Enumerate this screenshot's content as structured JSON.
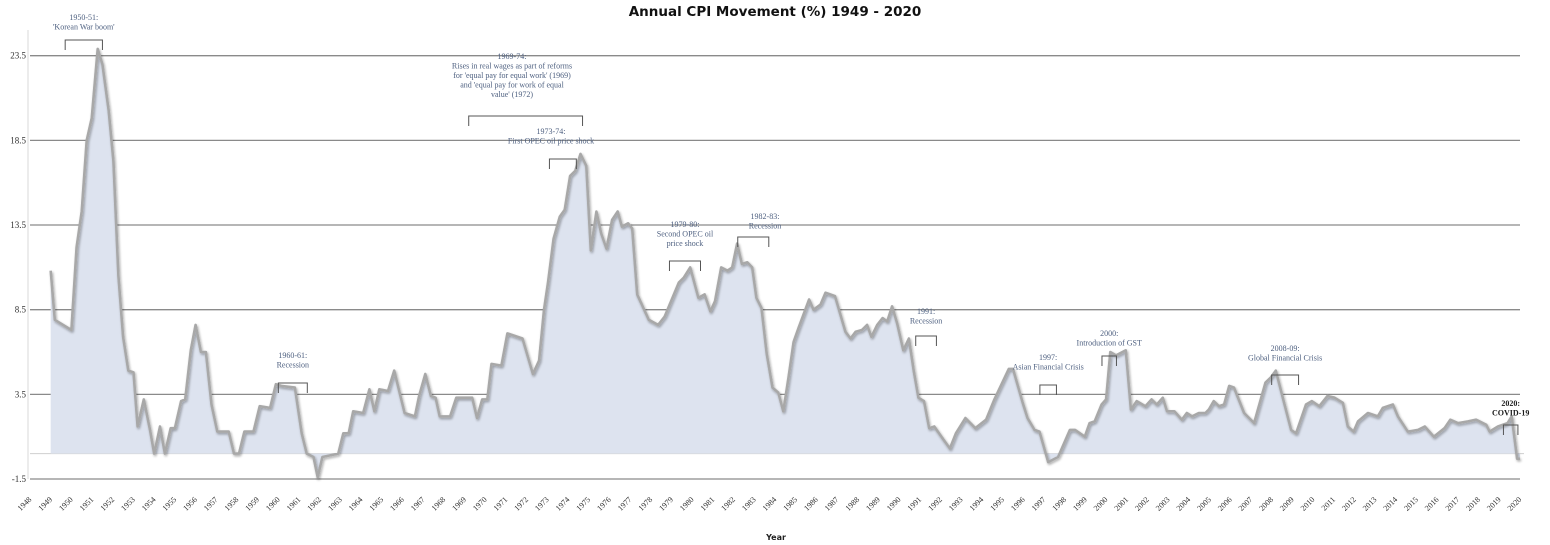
{
  "chart_data": {
    "type": "area",
    "title": "Annual CPI Movement (%) 1949 - 2020",
    "xlabel": "Year",
    "ylabel": "",
    "ylim": [
      -1.5,
      25
    ],
    "yticks": [
      "-1.5",
      "3.5",
      "8.5",
      "13.5",
      "18.5",
      "23.5"
    ],
    "xlim": [
      1948,
      2020
    ],
    "xticks": [
      "1948",
      "1949",
      "1950",
      "1951",
      "1952",
      "1953",
      "1954",
      "1955",
      "1956",
      "1957",
      "1958",
      "1959",
      "1960",
      "1961",
      "1962",
      "1963",
      "1964",
      "1965",
      "1966",
      "1967",
      "1968",
      "1969",
      "1970",
      "1971",
      "1972",
      "1973",
      "1974",
      "1975",
      "1976",
      "1977",
      "1978",
      "1979",
      "1980",
      "1981",
      "1982",
      "1983",
      "1984",
      "1985",
      "1986",
      "1987",
      "1988",
      "1989",
      "1990",
      "1991",
      "1992",
      "1993",
      "1994",
      "1995",
      "1996",
      "1997",
      "1998",
      "1999",
      "2000",
      "2001",
      "2002",
      "2003",
      "2004",
      "2005",
      "2006",
      "2007",
      "2008",
      "2009",
      "2010",
      "2011",
      "2012",
      "2013",
      "2014",
      "2015",
      "2016",
      "2017",
      "2018",
      "2019",
      "2020"
    ],
    "grid": true,
    "legend": "none",
    "colors": {
      "fill": "#dde3ef",
      "line": "#a8a8a8",
      "grid": "#8a8a8a",
      "annotation": "#4f6181"
    },
    "series": [
      {
        "points": [
          [
            1949.0,
            10.8
          ],
          [
            1949.2,
            7.9
          ],
          [
            1950.0,
            7.3
          ],
          [
            1950.25,
            12.2
          ],
          [
            1950.5,
            14.3
          ],
          [
            1950.74,
            18.5
          ],
          [
            1950.98,
            19.8
          ],
          [
            1951.27,
            23.9
          ],
          [
            1951.5,
            23.0
          ],
          [
            1951.8,
            20.3
          ],
          [
            1952.03,
            17.3
          ],
          [
            1952.27,
            10.5
          ],
          [
            1952.5,
            6.9
          ],
          [
            1952.75,
            4.9
          ],
          [
            1953.0,
            4.8
          ],
          [
            1953.2,
            1.6
          ],
          [
            1953.5,
            3.2
          ],
          [
            1953.8,
            1.4
          ],
          [
            1954.0,
            0.0
          ],
          [
            1954.28,
            1.6
          ],
          [
            1954.52,
            0.0
          ],
          [
            1954.8,
            1.5
          ],
          [
            1955.0,
            1.5
          ],
          [
            1955.3,
            3.1
          ],
          [
            1955.5,
            3.2
          ],
          [
            1955.77,
            6.1
          ],
          [
            1956.0,
            7.6
          ],
          [
            1956.26,
            6.0
          ],
          [
            1956.5,
            6.0
          ],
          [
            1956.77,
            2.9
          ],
          [
            1957.05,
            1.3
          ],
          [
            1957.6,
            1.3
          ],
          [
            1957.86,
            0.0
          ],
          [
            1958.1,
            0.0
          ],
          [
            1958.36,
            1.3
          ],
          [
            1958.8,
            1.3
          ],
          [
            1959.1,
            2.8
          ],
          [
            1959.6,
            2.7
          ],
          [
            1959.88,
            4.1
          ],
          [
            1960.15,
            4.0
          ],
          [
            1960.8,
            3.9
          ],
          [
            1961.13,
            1.2
          ],
          [
            1961.37,
            0.0
          ],
          [
            1961.7,
            -0.2
          ],
          [
            1961.9,
            -1.4
          ],
          [
            1962.13,
            -0.2
          ],
          [
            1962.9,
            0.0
          ],
          [
            1963.14,
            1.2
          ],
          [
            1963.4,
            1.2
          ],
          [
            1963.62,
            2.5
          ],
          [
            1964.1,
            2.4
          ],
          [
            1964.4,
            3.8
          ],
          [
            1964.64,
            2.5
          ],
          [
            1964.88,
            3.8
          ],
          [
            1965.3,
            3.7
          ],
          [
            1965.6,
            4.9
          ],
          [
            1966.1,
            2.4
          ],
          [
            1966.6,
            2.2
          ],
          [
            1966.8,
            3.4
          ],
          [
            1967.1,
            4.7
          ],
          [
            1967.37,
            3.4
          ],
          [
            1967.6,
            3.3
          ],
          [
            1967.8,
            2.2
          ],
          [
            1968.3,
            2.2
          ],
          [
            1968.6,
            3.3
          ],
          [
            1969.37,
            3.3
          ],
          [
            1969.6,
            2.1
          ],
          [
            1969.85,
            3.2
          ],
          [
            1970.1,
            3.2
          ],
          [
            1970.3,
            5.3
          ],
          [
            1970.78,
            5.2
          ],
          [
            1971.07,
            7.1
          ],
          [
            1971.8,
            6.8
          ],
          [
            1972.3,
            4.7
          ],
          [
            1972.6,
            5.5
          ],
          [
            1972.84,
            8.5
          ],
          [
            1973.03,
            10.1
          ],
          [
            1973.3,
            12.7
          ],
          [
            1973.6,
            14.0
          ],
          [
            1973.84,
            14.4
          ],
          [
            1974.1,
            16.4
          ],
          [
            1974.35,
            16.7
          ],
          [
            1974.6,
            17.7
          ],
          [
            1974.88,
            17.0
          ],
          [
            1975.1,
            12.0
          ],
          [
            1975.37,
            14.3
          ],
          [
            1975.6,
            13.0
          ],
          [
            1975.86,
            12.1
          ],
          [
            1976.13,
            13.8
          ],
          [
            1976.4,
            14.3
          ],
          [
            1976.6,
            13.4
          ],
          [
            1976.9,
            13.6
          ],
          [
            1977.1,
            13.3
          ],
          [
            1977.34,
            9.4
          ],
          [
            1977.9,
            7.9
          ],
          [
            1978.35,
            7.6
          ],
          [
            1978.67,
            8.1
          ],
          [
            1979.35,
            10.1
          ],
          [
            1979.6,
            10.4
          ],
          [
            1979.9,
            11.0
          ],
          [
            1980.3,
            9.2
          ],
          [
            1980.6,
            9.4
          ],
          [
            1980.88,
            8.4
          ],
          [
            1981.1,
            9.0
          ],
          [
            1981.4,
            11.0
          ],
          [
            1981.7,
            10.8
          ],
          [
            1981.93,
            11.0
          ],
          [
            1982.17,
            12.4
          ],
          [
            1982.4,
            11.2
          ],
          [
            1982.66,
            11.3
          ],
          [
            1982.9,
            11.0
          ],
          [
            1983.1,
            9.2
          ],
          [
            1983.35,
            8.6
          ],
          [
            1983.6,
            5.9
          ],
          [
            1983.88,
            3.9
          ],
          [
            1984.16,
            3.6
          ],
          [
            1984.4,
            2.5
          ],
          [
            1984.65,
            4.5
          ],
          [
            1984.9,
            6.6
          ],
          [
            1985.13,
            7.4
          ],
          [
            1985.65,
            9.1
          ],
          [
            1985.86,
            8.5
          ],
          [
            1986.2,
            8.8
          ],
          [
            1986.44,
            9.5
          ],
          [
            1986.9,
            9.3
          ],
          [
            1987.4,
            7.2
          ],
          [
            1987.65,
            6.8
          ],
          [
            1987.9,
            7.2
          ],
          [
            1988.2,
            7.3
          ],
          [
            1988.45,
            7.6
          ],
          [
            1988.66,
            6.9
          ],
          [
            1988.94,
            7.6
          ],
          [
            1989.2,
            8.0
          ],
          [
            1989.42,
            7.8
          ],
          [
            1989.66,
            8.7
          ],
          [
            1989.9,
            7.7
          ],
          [
            1990.2,
            6.1
          ],
          [
            1990.47,
            6.8
          ],
          [
            1990.7,
            4.9
          ],
          [
            1990.93,
            3.3
          ],
          [
            1991.2,
            3.1
          ],
          [
            1991.45,
            1.5
          ],
          [
            1991.7,
            1.6
          ],
          [
            1992.1,
            0.9
          ],
          [
            1992.45,
            0.3
          ],
          [
            1992.74,
            1.2
          ],
          [
            1993.2,
            2.1
          ],
          [
            1993.68,
            1.5
          ],
          [
            1994.2,
            2.0
          ],
          [
            1994.6,
            3.2
          ],
          [
            1995.3,
            5.0
          ],
          [
            1995.5,
            5.0
          ],
          [
            1995.97,
            3.0
          ],
          [
            1996.2,
            2.1
          ],
          [
            1996.54,
            1.4
          ],
          [
            1996.78,
            1.3
          ],
          [
            1997.2,
            -0.5
          ],
          [
            1997.68,
            -0.2
          ],
          [
            1998.25,
            1.4
          ],
          [
            1998.5,
            1.4
          ],
          [
            1998.97,
            1.0
          ],
          [
            1999.2,
            1.8
          ],
          [
            1999.45,
            1.9
          ],
          [
            1999.78,
            2.9
          ],
          [
            2000.0,
            3.2
          ],
          [
            2000.2,
            6.0
          ],
          [
            2000.48,
            5.8
          ],
          [
            2000.95,
            6.1
          ],
          [
            2001.2,
            2.6
          ],
          [
            2001.48,
            3.1
          ],
          [
            2001.9,
            2.8
          ],
          [
            2002.2,
            3.2
          ],
          [
            2002.45,
            2.9
          ],
          [
            2002.74,
            3.3
          ],
          [
            2002.94,
            2.5
          ],
          [
            2003.3,
            2.5
          ],
          [
            2003.66,
            2.0
          ],
          [
            2003.9,
            2.4
          ],
          [
            2004.15,
            2.2
          ],
          [
            2004.48,
            2.4
          ],
          [
            2004.8,
            2.4
          ],
          [
            2004.96,
            2.6
          ],
          [
            2005.2,
            3.1
          ],
          [
            2005.45,
            2.8
          ],
          [
            2005.7,
            2.9
          ],
          [
            2005.95,
            4.0
          ],
          [
            2006.18,
            3.9
          ],
          [
            2006.67,
            2.4
          ],
          [
            2007.15,
            1.8
          ],
          [
            2007.7,
            4.2
          ],
          [
            2007.96,
            4.5
          ],
          [
            2008.2,
            4.9
          ],
          [
            2008.6,
            3.0
          ],
          [
            2008.94,
            1.4
          ],
          [
            2009.18,
            1.2
          ],
          [
            2009.66,
            2.9
          ],
          [
            2009.94,
            3.1
          ],
          [
            2010.3,
            2.8
          ],
          [
            2010.7,
            3.4
          ],
          [
            2011.04,
            3.3
          ],
          [
            2011.44,
            3.0
          ],
          [
            2011.68,
            1.6
          ],
          [
            2011.96,
            1.3
          ],
          [
            2012.17,
            1.9
          ],
          [
            2012.65,
            2.4
          ],
          [
            2013.13,
            2.2
          ],
          [
            2013.37,
            2.7
          ],
          [
            2013.86,
            2.9
          ],
          [
            2014.1,
            2.2
          ],
          [
            2014.58,
            1.3
          ],
          [
            2015.07,
            1.4
          ],
          [
            2015.4,
            1.6
          ],
          [
            2015.84,
            1.0
          ],
          [
            2016.35,
            1.5
          ],
          [
            2016.63,
            2.0
          ],
          [
            2017.0,
            1.8
          ],
          [
            2017.48,
            1.9
          ],
          [
            2017.88,
            2.0
          ],
          [
            2018.37,
            1.7
          ],
          [
            2018.53,
            1.3
          ],
          [
            2018.93,
            1.6
          ],
          [
            2019.4,
            1.8
          ],
          [
            2019.6,
            2.2
          ],
          [
            2019.86,
            -0.3
          ],
          [
            2020.0,
            -0.3
          ]
        ]
      }
    ],
    "annotations": [
      {
        "id": "korean-war",
        "lines": [
          "1950-51:",
          "'Korean War boom'"
        ],
        "from": 1949.7,
        "to": 1951.5
      },
      {
        "id": "recession-1960",
        "lines": [
          "1960-61:",
          "Recession"
        ],
        "from": 1960.0,
        "to": 1961.4
      },
      {
        "id": "equal-pay",
        "lines": [
          "1969-74:",
          "Rises in real wages as part of reforms",
          "for 'equal pay for equal work' (1969)",
          "and 'equal pay for work of equal",
          "value' (1972)"
        ],
        "from": 1969.2,
        "to": 1974.7
      },
      {
        "id": "opec-1",
        "lines": [
          "1973-74:",
          "First OPEC oil price shock"
        ],
        "from": 1973.1,
        "to": 1974.4
      },
      {
        "id": "opec-2",
        "lines": [
          "1979-80:",
          "Second OPEC oil",
          "price shock"
        ],
        "from": 1978.9,
        "to": 1980.4
      },
      {
        "id": "recession-1982",
        "lines": [
          "1982-83:",
          "Recession"
        ],
        "from": 1982.2,
        "to": 1983.7
      },
      {
        "id": "recession-1991",
        "lines": [
          "1991:",
          "Recession"
        ],
        "from": 1990.8,
        "to": 1991.8
      },
      {
        "id": "asian-crisis",
        "lines": [
          "1997:",
          "Asian Financial Crisis"
        ],
        "from": 1996.8,
        "to": 1997.6
      },
      {
        "id": "gst",
        "lines": [
          "2000:",
          "Introduction of GST"
        ],
        "from": 1999.8,
        "to": 2000.5
      },
      {
        "id": "gfc",
        "lines": [
          "2008-09:",
          "Global Financial Crisis"
        ],
        "from": 2008.0,
        "to": 2009.3
      },
      {
        "id": "covid",
        "lines": [
          "2020:",
          "COVID-19"
        ],
        "from": 2019.2,
        "to": 2019.9
      }
    ]
  }
}
